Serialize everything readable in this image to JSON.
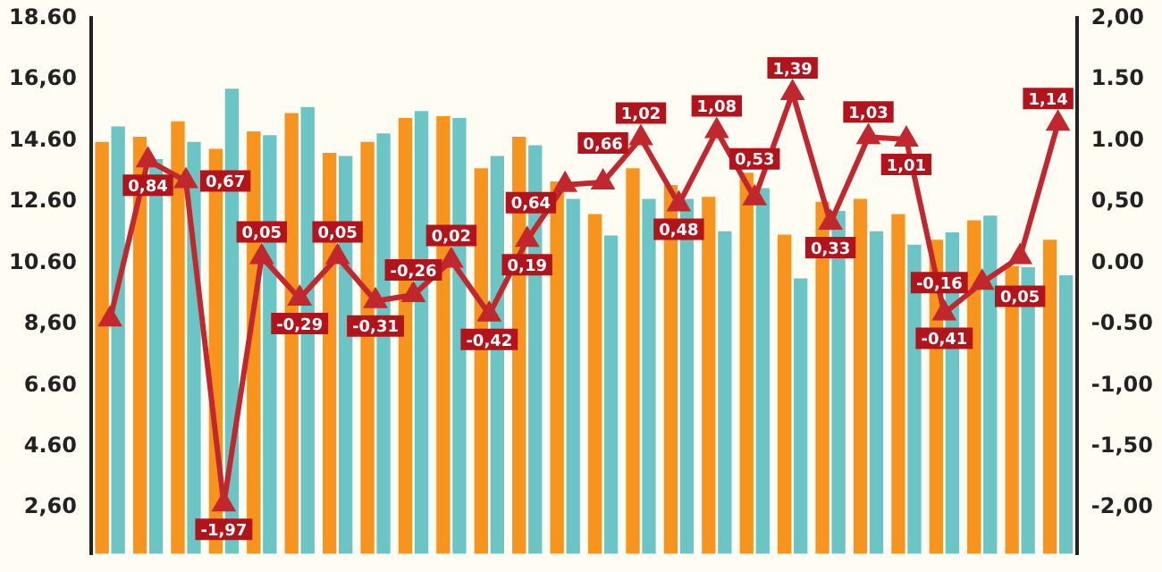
{
  "chart_data": {
    "type": "bar",
    "categories": [
      null,
      null,
      null,
      null,
      null,
      null,
      null,
      null,
      null,
      null,
      null,
      null,
      null,
      null,
      null,
      null,
      null,
      null,
      null,
      null,
      null,
      null,
      null,
      null,
      null,
      null
    ],
    "series": [
      {
        "color": "#f7941d",
        "values": [
          14.56,
          14.73,
          15.23,
          14.33,
          14.9,
          15.5,
          14.2,
          14.56,
          15.34,
          15.4,
          13.7,
          14.73,
          13.27,
          12.2,
          13.7,
          13.15,
          12.76,
          13.55,
          11.53,
          12.6,
          12.7,
          12.2,
          11.36,
          12.0,
          10.5,
          11.36
        ]
      },
      {
        "color": "#6cc5c5",
        "values": [
          15.06,
          14.0,
          14.56,
          16.3,
          14.78,
          15.7,
          14.1,
          14.84,
          15.57,
          15.34,
          14.1,
          14.45,
          12.7,
          11.5,
          12.7,
          12.7,
          11.64,
          13.05,
          10.1,
          12.3,
          11.64,
          11.2,
          11.6,
          12.15,
          10.46,
          10.2
        ]
      },
      {
        "type": "line",
        "axis": "y2",
        "color": "#c1272d",
        "marker": "triangle",
        "values": [
          -0.46,
          0.84,
          0.67,
          -1.97,
          0.05,
          -0.29,
          0.05,
          -0.31,
          -0.26,
          0.02,
          -0.42,
          0.19,
          0.64,
          0.66,
          1.02,
          0.48,
          1.08,
          0.53,
          1.39,
          0.33,
          1.03,
          1.01,
          -0.41,
          -0.16,
          0.05,
          1.14
        ],
        "value_labels": [
          null,
          "0,84",
          "0,67",
          "-1,97",
          "0,05",
          "-0,29",
          "0,05",
          "-0,31",
          "-0,26",
          "0,02",
          "-0,42",
          "0,19",
          "0,64",
          "0,66",
          "1,02",
          "0,48",
          "1,08",
          "0,53",
          "1,39",
          "0,33",
          "1,03",
          "1,01",
          "-0,41",
          "-0,16",
          "0,05",
          "1,14"
        ]
      }
    ],
    "ylim": [
      1.1,
      18.6
    ],
    "yticks": [
      {
        "value": 2.6,
        "label": "2,60"
      },
      {
        "value": 4.6,
        "label": "4.60"
      },
      {
        "value": 6.6,
        "label": "6.60"
      },
      {
        "value": 8.6,
        "label": "8,60"
      },
      {
        "value": 10.6,
        "label": "10.60"
      },
      {
        "value": 12.6,
        "label": "12.60"
      },
      {
        "value": 14.6,
        "label": "14.60"
      },
      {
        "value": 16.6,
        "label": "16,60"
      },
      {
        "value": 18.6,
        "label": "18.60"
      }
    ],
    "y2lim": [
      -2.375,
      2.0
    ],
    "y2ticks": [
      {
        "value": -2,
        "label": "-2,00"
      },
      {
        "value": -1.5,
        "label": "-1,50"
      },
      {
        "value": -1,
        "label": "-1,00"
      },
      {
        "value": -0.5,
        "label": "-0.50"
      },
      {
        "value": 0,
        "label": "0.00"
      },
      {
        "value": 0.5,
        "label": "0,50"
      },
      {
        "value": 1,
        "label": "1.00"
      },
      {
        "value": 1.5,
        "label": "1.50"
      },
      {
        "value": 2,
        "label": "2,00"
      }
    ],
    "grid": false,
    "legend": false
  }
}
